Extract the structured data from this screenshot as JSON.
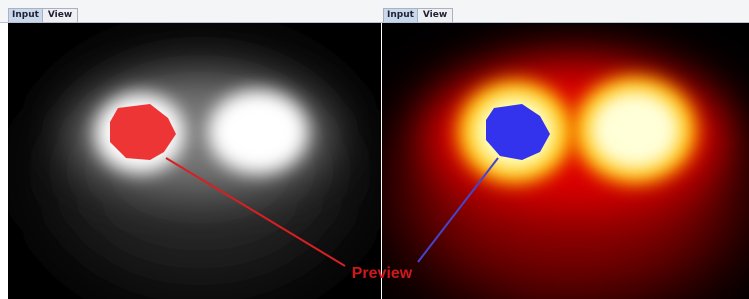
{
  "left_panel": {
    "tabs": [
      "Input",
      "View"
    ]
  },
  "right_panel": {
    "tabs": [
      "Input",
      "View"
    ]
  },
  "annotation": "Preview"
}
